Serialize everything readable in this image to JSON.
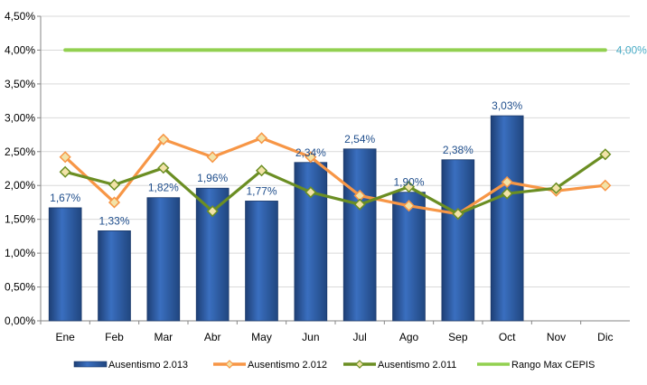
{
  "chart_data": {
    "type": "bar",
    "categories": [
      "Ene",
      "Feb",
      "Mar",
      "Abr",
      "May",
      "Jun",
      "Jul",
      "Ago",
      "Sep",
      "Oct",
      "Nov",
      "Dic"
    ],
    "ylim": [
      0,
      4.5
    ],
    "yticks": [
      0,
      0.5,
      1.0,
      1.5,
      2.0,
      2.5,
      3.0,
      3.5,
      4.0,
      4.5
    ],
    "ytick_labels": [
      "0,00%",
      "0,50%",
      "1,00%",
      "1,50%",
      "2,00%",
      "2,50%",
      "3,00%",
      "3,50%",
      "4,00%",
      "4,50%"
    ],
    "grid": true,
    "legend_position": "bottom",
    "series": [
      {
        "name": "Ausentismo 2.013",
        "kind": "bar",
        "color": "#2F5FA8",
        "values": [
          1.67,
          1.33,
          1.82,
          1.96,
          1.77,
          2.34,
          2.54,
          1.9,
          2.38,
          3.03,
          null,
          null
        ],
        "labels": [
          "1,67%",
          "1,33%",
          "1,82%",
          "1,96%",
          "1,77%",
          "2,34%",
          "2,54%",
          "1,90%",
          "2,38%",
          "3,03%",
          "",
          ""
        ]
      },
      {
        "name": "Ausentismo 2.012",
        "kind": "line",
        "color": "#F79646",
        "values": [
          2.42,
          1.75,
          2.68,
          2.42,
          2.7,
          2.42,
          1.85,
          1.7,
          1.58,
          2.05,
          1.92,
          2.0
        ]
      },
      {
        "name": "Ausentismo 2.011",
        "kind": "line",
        "color": "#6B8E23",
        "values": [
          2.2,
          2.01,
          2.26,
          1.62,
          2.22,
          1.9,
          1.72,
          1.98,
          1.58,
          1.88,
          1.96,
          2.46
        ]
      },
      {
        "name": "Rango Max CEPIS",
        "kind": "line",
        "color": "#92D050",
        "values": [
          4.0,
          4.0,
          4.0,
          4.0,
          4.0,
          4.0,
          4.0,
          4.0,
          4.0,
          4.0,
          4.0,
          4.0
        ],
        "end_label": "4,00%",
        "end_label_color": "#4BACC6"
      }
    ]
  }
}
